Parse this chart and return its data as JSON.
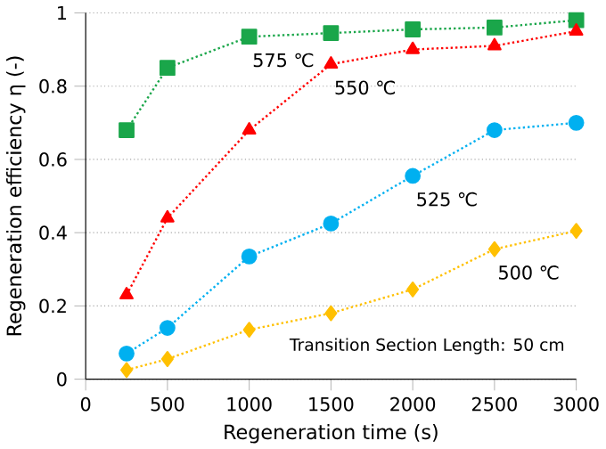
{
  "chart_data": {
    "type": "line",
    "xlabel": "Regeneration time (s)",
    "ylabel": "Regeneration efficiency η (-)",
    "x": [
      250,
      500,
      1000,
      1500,
      2000,
      2500,
      3000
    ],
    "series": [
      {
        "name": "575 ℃",
        "color": "#1aa64a",
        "marker": "square",
        "values": [
          0.68,
          0.85,
          0.935,
          0.945,
          0.955,
          0.96,
          0.98
        ]
      },
      {
        "name": "550 ℃",
        "color": "#ff0000",
        "marker": "triangle",
        "values": [
          0.23,
          0.44,
          0.68,
          0.86,
          0.9,
          0.91,
          0.95
        ]
      },
      {
        "name": "525 ℃",
        "color": "#00b0f0",
        "marker": "circle",
        "values": [
          0.07,
          0.14,
          0.335,
          0.425,
          0.555,
          0.68,
          0.7
        ]
      },
      {
        "name": "500 ℃",
        "color": "#ffc000",
        "marker": "diamond",
        "values": [
          0.025,
          0.055,
          0.135,
          0.18,
          0.245,
          0.355,
          0.405
        ]
      }
    ],
    "annotations": [
      "Transition Section Length: 50 cm"
    ],
    "xlim": [
      0,
      3000
    ],
    "ylim": [
      0,
      1
    ],
    "xticks": [
      0,
      500,
      1000,
      1500,
      2000,
      2500,
      3000
    ],
    "yticks": [
      0,
      0.2,
      0.4,
      0.6,
      0.8,
      1
    ],
    "grid": "y",
    "line_style": "dotted"
  }
}
